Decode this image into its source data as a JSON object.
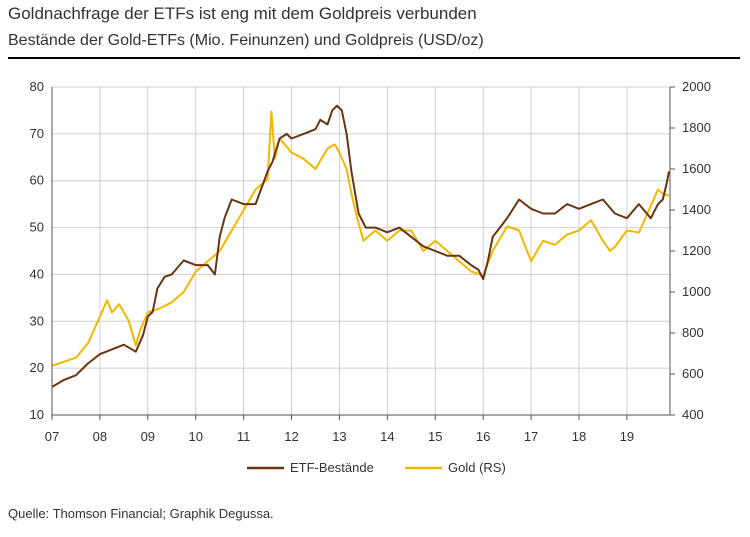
{
  "title": "Goldnachfrage der ETFs ist eng mit dem Goldpreis verbunden",
  "subtitle": "Bestände der Gold-ETFs (Mio. Feinunzen) und Goldpreis (USD/oz)",
  "source": "Quelle: Thomson Financial; Graphik Degussa.",
  "chart_data": {
    "type": "line",
    "x_tick_labels": [
      "07",
      "08",
      "09",
      "10",
      "11",
      "12",
      "13",
      "14",
      "15",
      "16",
      "17",
      "18",
      "19"
    ],
    "left_axis": {
      "min": 10,
      "max": 80,
      "ticks": [
        10,
        20,
        30,
        40,
        50,
        60,
        70,
        80
      ]
    },
    "right_axis": {
      "min": 400,
      "max": 2000,
      "ticks": [
        400,
        600,
        800,
        1000,
        1200,
        1400,
        1600,
        1800,
        2000
      ]
    },
    "grid": true,
    "legend_position": "bottom-center",
    "series": [
      {
        "name": "ETF-Bestände",
        "axis": "left",
        "color": "#6b3410",
        "x": [
          2007.0,
          2007.25,
          2007.5,
          2007.75,
          2008.0,
          2008.25,
          2008.5,
          2008.75,
          2008.9,
          2009.0,
          2009.1,
          2009.2,
          2009.35,
          2009.5,
          2009.75,
          2010.0,
          2010.25,
          2010.4,
          2010.5,
          2010.6,
          2010.75,
          2011.0,
          2011.25,
          2011.5,
          2011.6,
          2011.75,
          2011.9,
          2012.0,
          2012.25,
          2012.5,
          2012.6,
          2012.75,
          2012.85,
          2012.95,
          2013.05,
          2013.15,
          2013.25,
          2013.4,
          2013.55,
          2013.75,
          2014.0,
          2014.25,
          2014.5,
          2014.75,
          2015.0,
          2015.25,
          2015.5,
          2015.75,
          2015.9,
          2016.0,
          2016.1,
          2016.2,
          2016.35,
          2016.5,
          2016.75,
          2017.0,
          2017.25,
          2017.5,
          2017.75,
          2018.0,
          2018.25,
          2018.5,
          2018.75,
          2019.0,
          2019.25,
          2019.5,
          2019.65,
          2019.75,
          2019.82,
          2019.88
        ],
        "values": [
          16,
          17.5,
          18.5,
          21,
          23,
          24,
          25,
          23.5,
          27,
          31,
          32,
          37,
          39.5,
          40,
          43,
          42,
          42,
          40,
          48,
          52,
          56,
          55,
          55,
          62,
          64,
          69,
          70,
          69,
          70,
          71,
          73,
          72,
          75,
          76,
          75,
          70,
          62,
          53,
          50,
          50,
          49,
          50,
          48,
          46,
          45,
          44,
          44,
          42,
          41,
          39,
          43,
          48,
          50,
          52,
          56,
          54,
          53,
          53,
          55,
          54,
          55,
          56,
          53,
          52,
          55,
          52,
          55,
          56,
          59,
          62
        ]
      },
      {
        "name": "Gold (RS)",
        "axis": "right",
        "color": "#f2b800",
        "x": [
          2007.0,
          2007.25,
          2007.5,
          2007.75,
          2008.0,
          2008.15,
          2008.25,
          2008.4,
          2008.5,
          2008.6,
          2008.75,
          2008.85,
          2009.0,
          2009.25,
          2009.5,
          2009.75,
          2010.0,
          2010.25,
          2010.5,
          2010.75,
          2011.0,
          2011.25,
          2011.5,
          2011.58,
          2011.65,
          2011.75,
          2012.0,
          2012.25,
          2012.5,
          2012.75,
          2012.9,
          2013.0,
          2013.15,
          2013.25,
          2013.35,
          2013.5,
          2013.75,
          2014.0,
          2014.25,
          2014.5,
          2014.75,
          2015.0,
          2015.25,
          2015.5,
          2015.75,
          2016.0,
          2016.2,
          2016.5,
          2016.75,
          2017.0,
          2017.25,
          2017.5,
          2017.75,
          2018.0,
          2018.25,
          2018.5,
          2018.65,
          2018.75,
          2019.0,
          2019.25,
          2019.5,
          2019.65,
          2019.75,
          2019.88
        ],
        "values": [
          640,
          660,
          680,
          750,
          880,
          960,
          900,
          940,
          900,
          860,
          740,
          820,
          900,
          920,
          950,
          1000,
          1100,
          1150,
          1200,
          1300,
          1400,
          1500,
          1550,
          1880,
          1650,
          1750,
          1680,
          1650,
          1600,
          1700,
          1720,
          1680,
          1600,
          1480,
          1380,
          1250,
          1300,
          1250,
          1300,
          1300,
          1200,
          1250,
          1200,
          1150,
          1100,
          1080,
          1200,
          1320,
          1300,
          1150,
          1250,
          1230,
          1280,
          1300,
          1350,
          1250,
          1200,
          1220,
          1300,
          1290,
          1420,
          1500,
          1480,
          1470
        ]
      }
    ]
  }
}
